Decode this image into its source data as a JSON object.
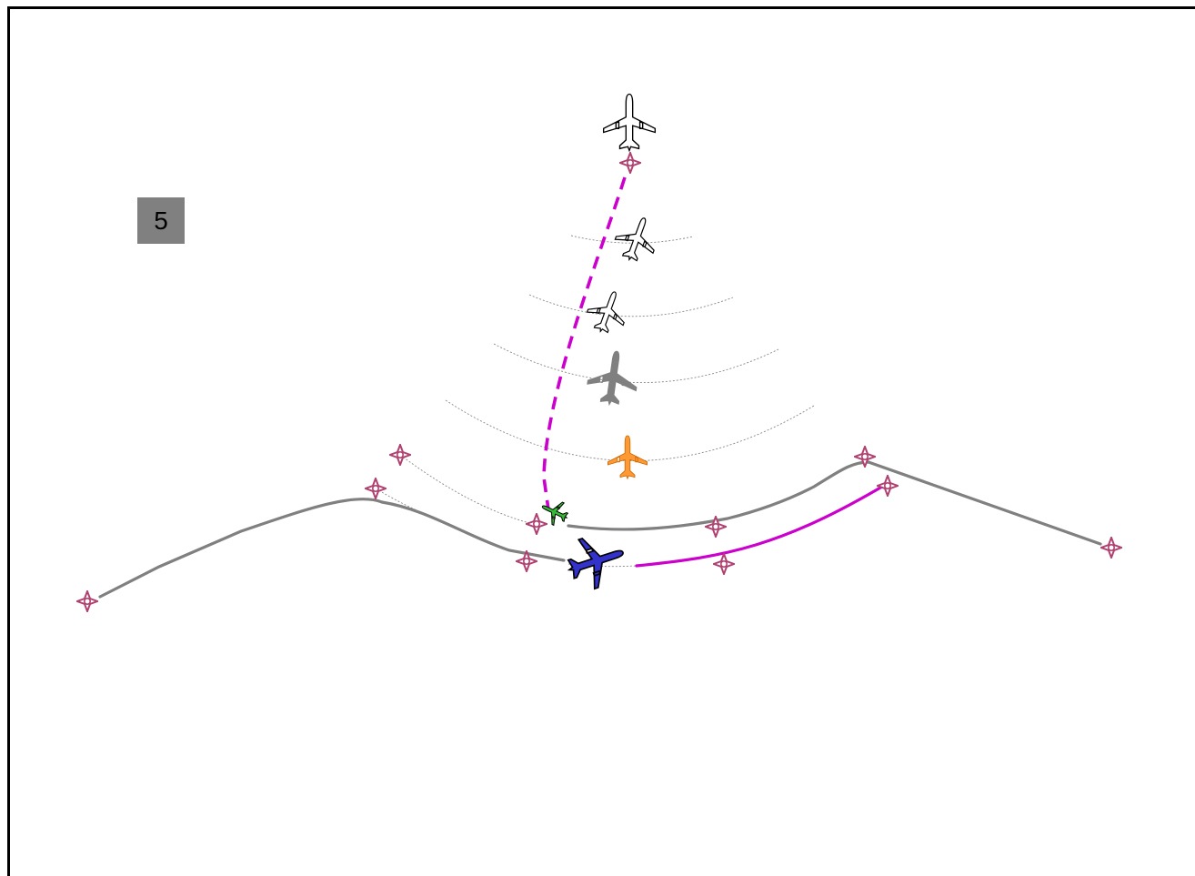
{
  "step_badge": {
    "label": "5"
  },
  "colors": {
    "route": "#808080",
    "active_leg": "#cc00cc",
    "waypoint": "#b04070",
    "ownship": "#3333cc",
    "traffic_green": "#33bb33",
    "traffic_orange": "#ff9933",
    "traffic_gray": "#808080",
    "outline": "#000000"
  },
  "icons": {
    "waypoint": "waypoint-diamond-icon",
    "aircraft": "airplane-icon"
  }
}
